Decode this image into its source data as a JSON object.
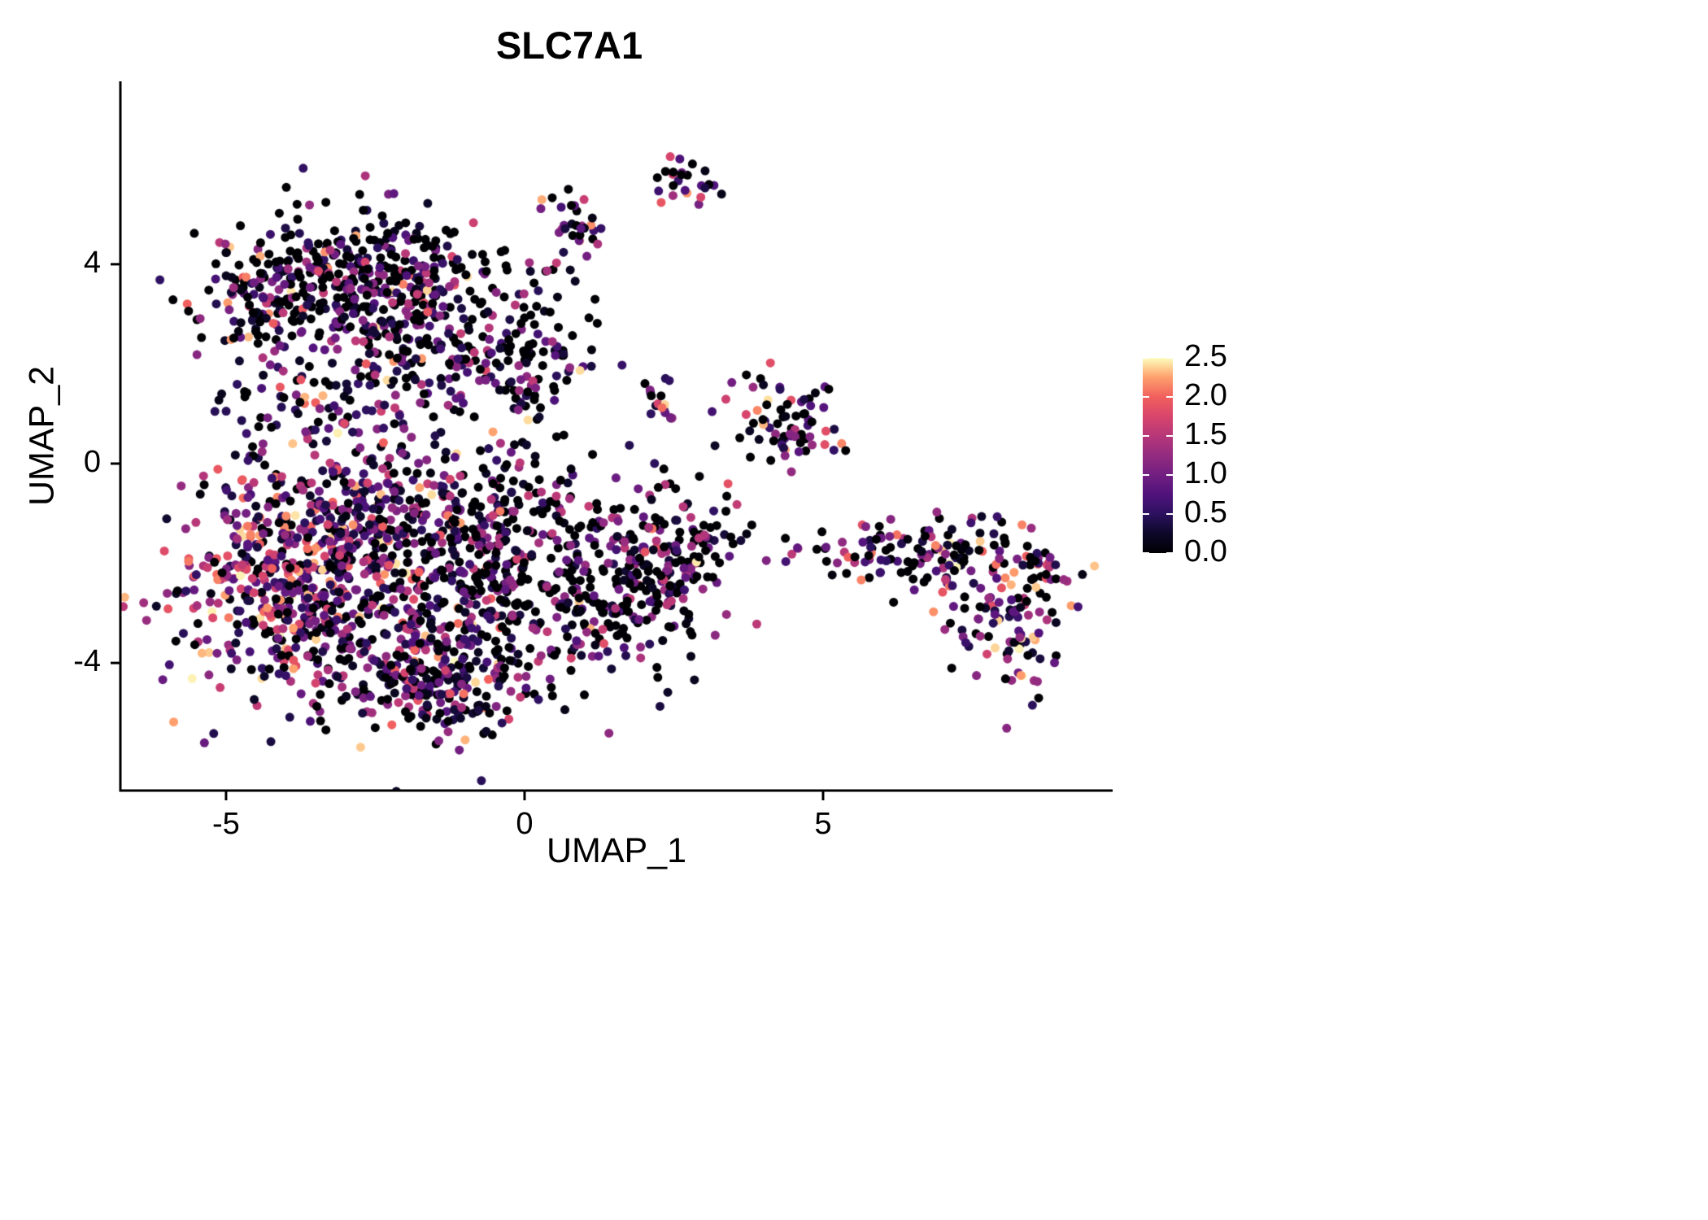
{
  "chart_data": {
    "type": "scatter",
    "title": "SLC7A1",
    "xlabel": "UMAP_1",
    "ylabel": "UMAP_2",
    "x_ticks": [
      "-5",
      "0",
      "5"
    ],
    "x_tick_values": [
      -5,
      0,
      5
    ],
    "y_ticks": [
      "4",
      "0",
      "-4"
    ],
    "y_tick_values": [
      4,
      0,
      -4
    ],
    "xlim": [
      -6.77,
      9.85
    ],
    "ylim": [
      -6.56,
      7.67
    ],
    "grid": "off",
    "point_radius": 5.5,
    "seed": 7,
    "legend": {
      "position": "right",
      "ticks": [
        "0.0",
        "0.5",
        "1.0",
        "1.5",
        "2.0",
        "2.5"
      ],
      "tick_values": [
        0,
        0.5,
        1.0,
        1.5,
        2.0,
        2.5
      ],
      "vmin": 0,
      "vmax": 2.5
    },
    "colormap": {
      "name": "magma",
      "stops": [
        {
          "t": 0.0,
          "color": "#000004"
        },
        {
          "t": 0.1,
          "color": "#0d0829"
        },
        {
          "t": 0.2,
          "color": "#2c115f"
        },
        {
          "t": 0.3,
          "color": "#51127c"
        },
        {
          "t": 0.4,
          "color": "#721f81"
        },
        {
          "t": 0.5,
          "color": "#932b80"
        },
        {
          "t": 0.6,
          "color": "#b73779"
        },
        {
          "t": 0.7,
          "color": "#d8456c"
        },
        {
          "t": 0.8,
          "color": "#f1605d"
        },
        {
          "t": 0.9,
          "color": "#fe9f6d"
        },
        {
          "t": 0.95,
          "color": "#fecf92"
        },
        {
          "t": 1.0,
          "color": "#fcfdbf"
        }
      ]
    },
    "expr_bins": [
      [
        0,
        0
      ],
      [
        0.05,
        0.55
      ],
      [
        0.55,
        1.6
      ],
      [
        1.6,
        2.5
      ]
    ],
    "clusters": [
      {
        "name": "upper-blob-core",
        "cx": -2.8,
        "cy": 3.9,
        "sx": 1.05,
        "sy": 0.62,
        "n": 320,
        "w": [
          0.42,
          0.23,
          0.3,
          0.05
        ]
      },
      {
        "name": "upper-blob-south",
        "cx": -1.6,
        "cy": 2.6,
        "sx": 1.0,
        "sy": 0.7,
        "n": 220,
        "w": [
          0.4,
          0.22,
          0.32,
          0.06
        ]
      },
      {
        "name": "upper-blob-west",
        "cx": -4.35,
        "cy": 3.05,
        "sx": 0.5,
        "sy": 0.55,
        "n": 90,
        "w": [
          0.33,
          0.2,
          0.36,
          0.11
        ]
      },
      {
        "name": "upper-blob-east-trail",
        "cx": 0.3,
        "cy": 2.2,
        "sx": 0.5,
        "sy": 0.85,
        "n": 80,
        "w": [
          0.45,
          0.2,
          0.3,
          0.05
        ]
      },
      {
        "name": "mid-band",
        "cx": -3.1,
        "cy": 1.15,
        "sx": 1.1,
        "sy": 0.45,
        "n": 80,
        "w": [
          0.3,
          0.25,
          0.35,
          0.1
        ]
      },
      {
        "name": "lower-blob-west-warm",
        "cx": -4.2,
        "cy": -2.2,
        "sx": 0.85,
        "sy": 1.15,
        "n": 380,
        "w": [
          0.13,
          0.17,
          0.42,
          0.28
        ]
      },
      {
        "name": "lower-blob-northwest",
        "cx": -2.6,
        "cy": -0.9,
        "sx": 1.0,
        "sy": 0.75,
        "n": 260,
        "w": [
          0.22,
          0.23,
          0.4,
          0.15
        ]
      },
      {
        "name": "lower-blob-center",
        "cx": -2.0,
        "cy": -3.1,
        "sx": 1.15,
        "sy": 0.95,
        "n": 380,
        "w": [
          0.3,
          0.27,
          0.33,
          0.1
        ]
      },
      {
        "name": "lower-blob-south-tail",
        "cx": -1.4,
        "cy": -4.5,
        "sx": 0.85,
        "sy": 0.45,
        "n": 150,
        "w": [
          0.3,
          0.3,
          0.33,
          0.07
        ]
      },
      {
        "name": "lower-blob-mid-column",
        "cx": -0.6,
        "cy": -1.6,
        "sx": 0.55,
        "sy": 1.2,
        "n": 180,
        "w": [
          0.45,
          0.25,
          0.27,
          0.03
        ]
      },
      {
        "name": "lower-blob-east",
        "cx": 1.4,
        "cy": -2.3,
        "sx": 0.95,
        "sy": 1.05,
        "n": 300,
        "w": [
          0.48,
          0.22,
          0.27,
          0.03
        ]
      },
      {
        "name": "lower-blob-east-edge",
        "cx": 2.55,
        "cy": -1.8,
        "sx": 0.4,
        "sy": 0.7,
        "n": 80,
        "w": [
          0.35,
          0.25,
          0.35,
          0.05
        ]
      },
      {
        "name": "mini-cluster-inner",
        "cx": 2.3,
        "cy": 1.35,
        "sx": 0.16,
        "sy": 0.22,
        "n": 18,
        "w": [
          0.3,
          0.15,
          0.45,
          0.1
        ]
      },
      {
        "name": "mid-right-cluster",
        "cx": 4.4,
        "cy": 0.9,
        "sx": 0.42,
        "sy": 0.52,
        "n": 75,
        "w": [
          0.28,
          0.17,
          0.4,
          0.15
        ]
      },
      {
        "name": "top-cluster",
        "cx": 2.75,
        "cy": 5.75,
        "sx": 0.27,
        "sy": 0.22,
        "n": 25,
        "w": [
          0.28,
          0.12,
          0.4,
          0.2
        ]
      },
      {
        "name": "top-trail",
        "cx": 0.8,
        "cy": 4.6,
        "sx": 0.3,
        "sy": 0.38,
        "n": 30,
        "w": [
          0.3,
          0.2,
          0.4,
          0.1
        ]
      },
      {
        "name": "sparse-east",
        "cx": 3.5,
        "cy": -1.25,
        "sx": 0.75,
        "sy": 0.45,
        "n": 14,
        "w": [
          0.6,
          0.1,
          0.3,
          0.0
        ]
      },
      {
        "name": "bridge-sparse",
        "cx": 5.0,
        "cy": -1.75,
        "sx": 0.8,
        "sy": 0.2,
        "n": 12,
        "w": [
          0.5,
          0.1,
          0.4,
          0.0
        ]
      },
      {
        "name": "right-arm",
        "cx": 7.0,
        "cy": -1.8,
        "sx": 0.85,
        "sy": 0.38,
        "n": 130,
        "w": [
          0.3,
          0.2,
          0.35,
          0.15
        ]
      },
      {
        "name": "right-arm-tail",
        "cx": 8.1,
        "cy": -3.3,
        "sx": 0.5,
        "sy": 0.55,
        "n": 90,
        "w": [
          0.25,
          0.2,
          0.35,
          0.2
        ]
      },
      {
        "name": "right-arm-tip",
        "cx": 8.7,
        "cy": -2.1,
        "sx": 0.3,
        "sy": 0.3,
        "n": 25,
        "w": [
          0.25,
          0.15,
          0.4,
          0.2
        ]
      }
    ]
  }
}
